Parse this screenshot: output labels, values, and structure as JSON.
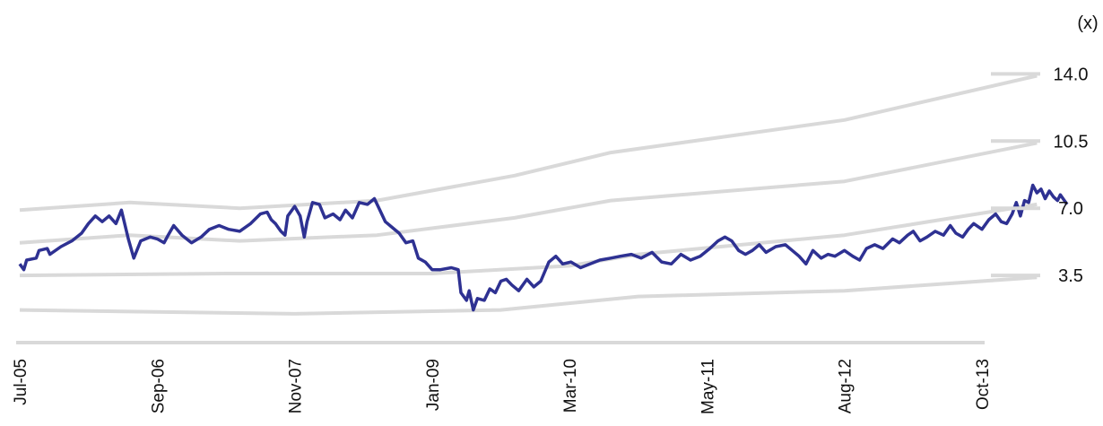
{
  "chart_data": {
    "type": "line",
    "title": "",
    "xlabel": "",
    "ylabel": "",
    "y_unit_label": "(x)",
    "y_ticks": [
      "14.0",
      "10.5",
      "7.0",
      "3.5"
    ],
    "x_ticks": [
      "Jul-05",
      "Sep-06",
      "Nov-07",
      "Jan-09",
      "Mar-10",
      "May-11",
      "Aug-12",
      "Oct-13"
    ],
    "ylim": [
      0,
      14
    ],
    "grid": false,
    "colors": {
      "main_series": "#2e3192",
      "bands": "#d9d9d9",
      "axis": "#d9d9d9"
    },
    "bands": [
      {
        "points": [
          [
            0,
            6.9
          ],
          [
            0.8,
            7.3
          ],
          [
            1.6,
            7.0
          ],
          [
            2.6,
            7.4
          ],
          [
            3.6,
            8.7
          ],
          [
            4.3,
            9.9
          ],
          [
            6.0,
            11.6
          ],
          [
            7.4,
            13.9
          ]
        ]
      },
      {
        "points": [
          [
            0,
            5.2
          ],
          [
            0.8,
            5.6
          ],
          [
            1.6,
            5.3
          ],
          [
            2.6,
            5.6
          ],
          [
            3.6,
            6.5
          ],
          [
            4.3,
            7.4
          ],
          [
            6.0,
            8.4
          ],
          [
            7.4,
            10.4
          ]
        ]
      },
      {
        "points": [
          [
            0,
            3.5
          ],
          [
            1.5,
            3.6
          ],
          [
            3.0,
            3.6
          ],
          [
            4.0,
            4.0
          ],
          [
            4.5,
            4.6
          ],
          [
            6.0,
            5.6
          ],
          [
            7.4,
            7.2
          ]
        ]
      },
      {
        "points": [
          [
            0,
            1.7
          ],
          [
            2.0,
            1.5
          ],
          [
            3.5,
            1.7
          ],
          [
            4.5,
            2.4
          ],
          [
            6.0,
            2.7
          ],
          [
            7.4,
            3.4
          ]
        ]
      }
    ],
    "series": [
      {
        "values": [
          [
            0.0,
            4.1
          ],
          [
            0.03,
            3.8
          ],
          [
            0.05,
            4.3
          ],
          [
            0.12,
            4.4
          ],
          [
            0.14,
            4.8
          ],
          [
            0.2,
            4.9
          ],
          [
            0.22,
            4.6
          ],
          [
            0.3,
            5.0
          ],
          [
            0.38,
            5.3
          ],
          [
            0.45,
            5.7
          ],
          [
            0.5,
            6.2
          ],
          [
            0.55,
            6.6
          ],
          [
            0.6,
            6.3
          ],
          [
            0.65,
            6.6
          ],
          [
            0.7,
            6.2
          ],
          [
            0.74,
            6.9
          ],
          [
            0.79,
            5.4
          ],
          [
            0.83,
            4.4
          ],
          [
            0.88,
            5.3
          ],
          [
            0.95,
            5.5
          ],
          [
            1.0,
            5.4
          ],
          [
            1.05,
            5.2
          ],
          [
            1.08,
            5.6
          ],
          [
            1.12,
            6.1
          ],
          [
            1.18,
            5.6
          ],
          [
            1.25,
            5.2
          ],
          [
            1.32,
            5.5
          ],
          [
            1.38,
            5.9
          ],
          [
            1.45,
            6.1
          ],
          [
            1.52,
            5.9
          ],
          [
            1.6,
            5.8
          ],
          [
            1.68,
            6.2
          ],
          [
            1.75,
            6.7
          ],
          [
            1.8,
            6.8
          ],
          [
            1.83,
            6.4
          ],
          [
            1.86,
            6.2
          ],
          [
            1.9,
            5.8
          ],
          [
            1.93,
            5.6
          ],
          [
            1.95,
            6.6
          ],
          [
            2.0,
            7.1
          ],
          [
            2.04,
            6.6
          ],
          [
            2.07,
            5.5
          ],
          [
            2.09,
            6.3
          ],
          [
            2.13,
            7.3
          ],
          [
            2.18,
            7.2
          ],
          [
            2.22,
            6.5
          ],
          [
            2.28,
            6.7
          ],
          [
            2.33,
            6.4
          ],
          [
            2.37,
            6.9
          ],
          [
            2.42,
            6.5
          ],
          [
            2.47,
            7.3
          ],
          [
            2.53,
            7.2
          ],
          [
            2.58,
            7.5
          ],
          [
            2.62,
            6.9
          ],
          [
            2.66,
            6.3
          ],
          [
            2.71,
            6.0
          ],
          [
            2.76,
            5.7
          ],
          [
            2.81,
            5.2
          ],
          [
            2.86,
            5.3
          ],
          [
            2.9,
            4.4
          ],
          [
            2.95,
            4.2
          ],
          [
            3.0,
            3.8
          ],
          [
            3.06,
            3.8
          ],
          [
            3.14,
            3.9
          ],
          [
            3.19,
            3.8
          ],
          [
            3.21,
            2.6
          ],
          [
            3.25,
            2.2
          ],
          [
            3.27,
            2.7
          ],
          [
            3.3,
            1.7
          ],
          [
            3.33,
            2.3
          ],
          [
            3.38,
            2.2
          ],
          [
            3.42,
            2.8
          ],
          [
            3.46,
            2.6
          ],
          [
            3.5,
            3.2
          ],
          [
            3.54,
            3.3
          ],
          [
            3.58,
            3.0
          ],
          [
            3.63,
            2.7
          ],
          [
            3.69,
            3.3
          ],
          [
            3.74,
            2.9
          ],
          [
            3.79,
            3.2
          ],
          [
            3.85,
            4.2
          ],
          [
            3.9,
            4.5
          ],
          [
            3.95,
            4.1
          ],
          [
            4.01,
            4.2
          ],
          [
            4.08,
            3.9
          ],
          [
            4.15,
            4.1
          ],
          [
            4.22,
            4.3
          ],
          [
            4.3,
            4.4
          ],
          [
            4.37,
            4.5
          ],
          [
            4.45,
            4.6
          ],
          [
            4.52,
            4.4
          ],
          [
            4.6,
            4.7
          ],
          [
            4.67,
            4.2
          ],
          [
            4.74,
            4.1
          ],
          [
            4.81,
            4.6
          ],
          [
            4.88,
            4.3
          ],
          [
            4.95,
            4.5
          ],
          [
            5.02,
            4.9
          ],
          [
            5.08,
            5.3
          ],
          [
            5.13,
            5.5
          ],
          [
            5.18,
            5.3
          ],
          [
            5.23,
            4.8
          ],
          [
            5.28,
            4.6
          ],
          [
            5.33,
            4.8
          ],
          [
            5.38,
            5.1
          ],
          [
            5.43,
            4.7
          ],
          [
            5.5,
            5.0
          ],
          [
            5.57,
            5.1
          ],
          [
            5.62,
            4.8
          ],
          [
            5.67,
            4.5
          ],
          [
            5.72,
            4.1
          ],
          [
            5.77,
            4.8
          ],
          [
            5.83,
            4.4
          ],
          [
            5.88,
            4.6
          ],
          [
            5.93,
            4.5
          ],
          [
            6.0,
            4.8
          ],
          [
            6.06,
            4.5
          ],
          [
            6.11,
            4.3
          ],
          [
            6.16,
            4.9
          ],
          [
            6.22,
            5.1
          ],
          [
            6.28,
            4.9
          ],
          [
            6.35,
            5.4
          ],
          [
            6.4,
            5.2
          ],
          [
            6.46,
            5.6
          ],
          [
            6.5,
            5.8
          ],
          [
            6.55,
            5.3
          ],
          [
            6.6,
            5.5
          ],
          [
            6.66,
            5.8
          ],
          [
            6.72,
            5.6
          ],
          [
            6.77,
            6.1
          ],
          [
            6.81,
            5.7
          ],
          [
            6.86,
            5.5
          ],
          [
            6.9,
            5.9
          ],
          [
            6.94,
            6.2
          ],
          [
            7.0,
            5.9
          ],
          [
            7.05,
            6.4
          ],
          [
            7.1,
            6.7
          ],
          [
            7.14,
            6.3
          ],
          [
            7.18,
            6.2
          ],
          [
            7.22,
            6.7
          ],
          [
            7.25,
            7.3
          ],
          [
            7.28,
            6.6
          ],
          [
            7.31,
            7.4
          ],
          [
            7.34,
            7.3
          ],
          [
            7.37,
            8.2
          ],
          [
            7.4,
            7.8
          ],
          [
            7.43,
            8.0
          ],
          [
            7.46,
            7.5
          ],
          [
            7.49,
            7.9
          ],
          [
            7.52,
            7.6
          ],
          [
            7.55,
            7.4
          ],
          [
            7.57,
            7.7
          ],
          [
            7.6,
            7.4
          ],
          [
            7.62,
            7.2
          ]
        ]
      }
    ]
  }
}
